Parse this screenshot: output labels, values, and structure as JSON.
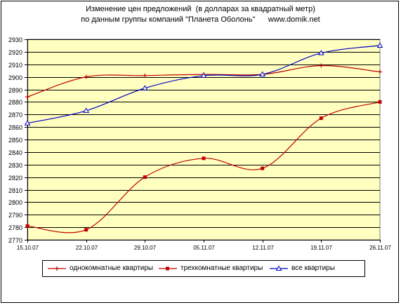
{
  "chart_data": {
    "type": "line",
    "title": "Изменение цен предложений  (в долларах за квадратный метр)",
    "subtitle": "по данным группы компаний \"Планета Оболонь\"      www.domik.net",
    "xlabel": "",
    "ylabel": "",
    "categories": [
      "15.10.07",
      "22.10.07",
      "29.10.07",
      "05.11.07",
      "12.11.07",
      "19.11.07",
      "26.11.07"
    ],
    "ylim": [
      2770,
      2930
    ],
    "yticks": [
      2770,
      2780,
      2790,
      2800,
      2810,
      2820,
      2830,
      2840,
      2850,
      2860,
      2870,
      2880,
      2890,
      2900,
      2910,
      2920,
      2930
    ],
    "grid": true,
    "legend_position": "bottom",
    "plot_background": "#FFFFC0",
    "series": [
      {
        "name": "однокомнатные квартиры",
        "color": "#C00000",
        "marker": "cross",
        "values": [
          2884,
          2900,
          2901,
          2902,
          2902,
          2909,
          2904
        ]
      },
      {
        "name": "трехкомнатные квартиры",
        "color": "#C00000",
        "marker": "square",
        "values": [
          2781,
          2778,
          2820,
          2835,
          2827,
          2867,
          2880
        ]
      },
      {
        "name": "все квартиры",
        "color": "#0000C0",
        "marker": "triangle",
        "values": [
          2863,
          2873,
          2891,
          2901,
          2902,
          2919,
          2925
        ]
      }
    ]
  }
}
